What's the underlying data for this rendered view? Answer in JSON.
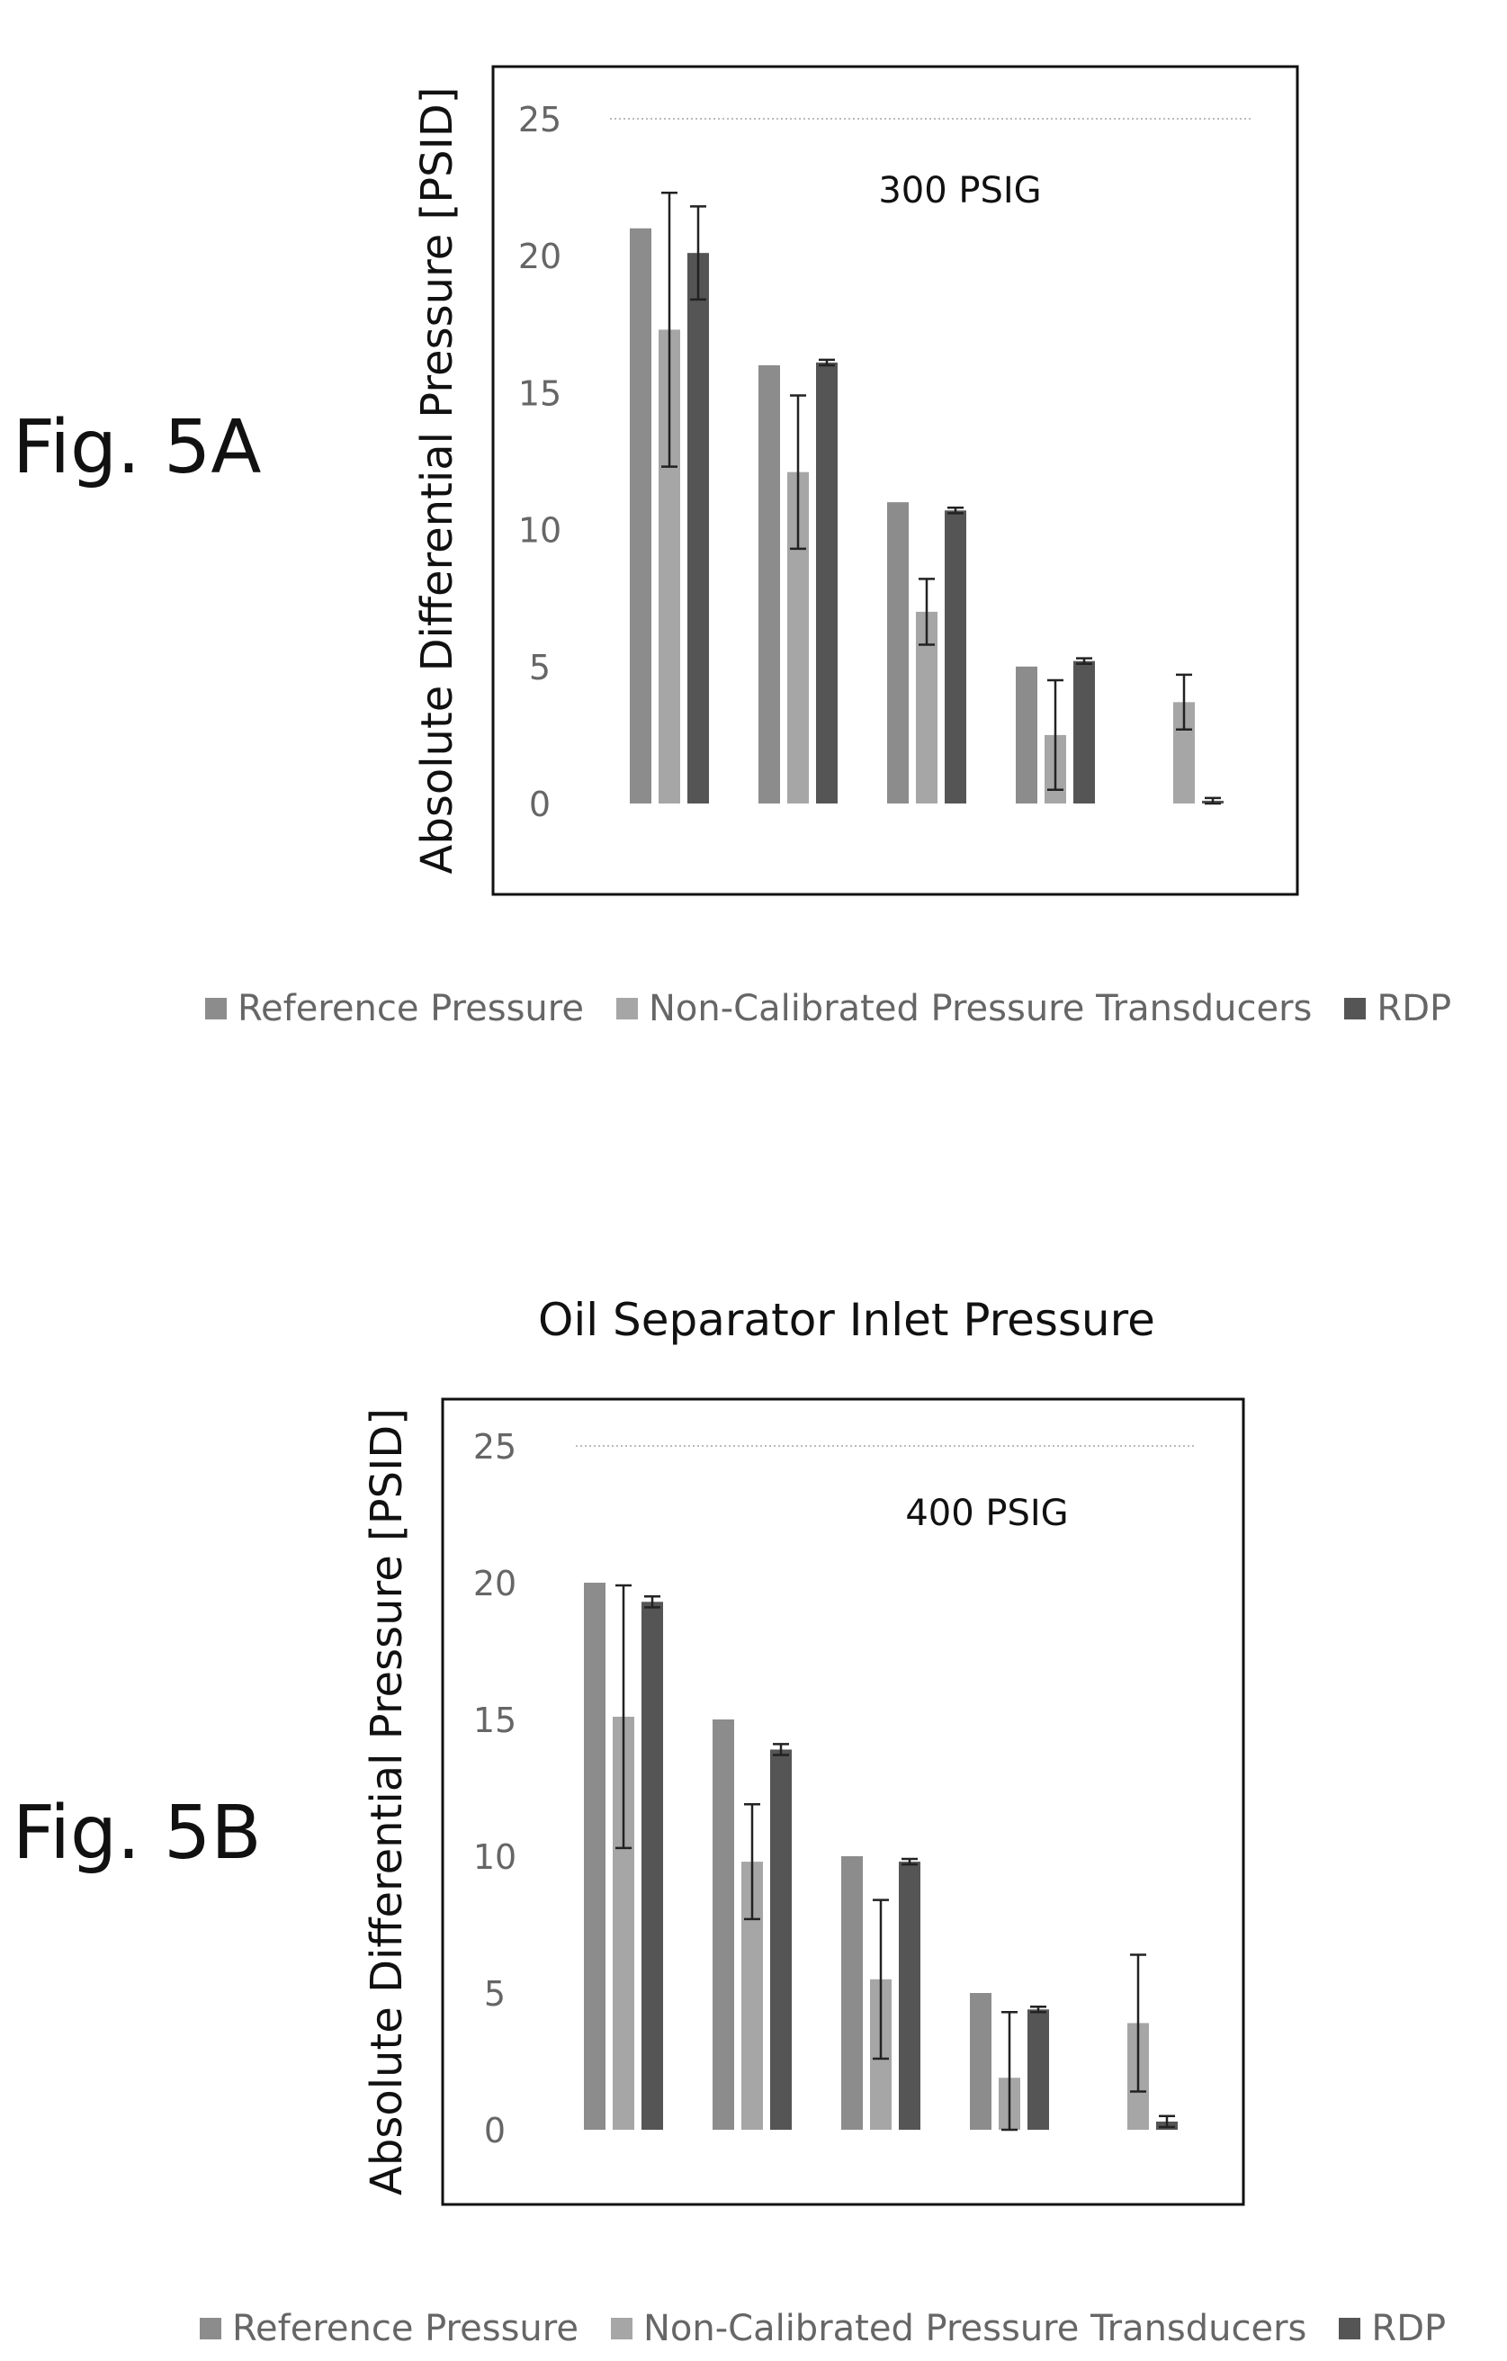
{
  "figures": {
    "a": {
      "label": "Fig. 5A"
    },
    "b": {
      "label": "Fig. 5B"
    }
  },
  "chart_data": [
    {
      "type": "bar",
      "title": "",
      "annotation": "300 PSIG",
      "xlabel": "",
      "ylabel": "Absolute Differential Pressure [PSID]",
      "ylim": [
        0,
        25
      ],
      "yticks": [
        0,
        5,
        10,
        15,
        20,
        25
      ],
      "grid": false,
      "legend_position": "bottom",
      "categories": [
        "",
        "",
        "",
        "",
        ""
      ],
      "series": [
        {
          "name": "Reference Pressure",
          "color": "#8c8c8c",
          "values": [
            21,
            16,
            11,
            5,
            0
          ],
          "error": [
            null,
            null,
            null,
            null,
            null
          ]
        },
        {
          "name": "Non-Calibrated Pressure Transducers",
          "color": "#a6a6a6",
          "values": [
            17.3,
            12.1,
            7.0,
            2.5,
            3.7
          ],
          "error": [
            5.0,
            2.8,
            1.2,
            2.0,
            1.0
          ]
        },
        {
          "name": "RDP",
          "color": "#555555",
          "values": [
            20.1,
            16.1,
            10.7,
            5.2,
            0.1
          ],
          "error": [
            1.7,
            0.1,
            0.1,
            0.1,
            0.1
          ]
        }
      ]
    },
    {
      "type": "bar",
      "title": "Oil Separator Inlet Pressure",
      "annotation": "400 PSIG",
      "xlabel": "",
      "ylabel": "Absolute Differential Pressure [PSID]",
      "ylim": [
        0,
        25
      ],
      "yticks": [
        0,
        5,
        10,
        15,
        20,
        25
      ],
      "grid": false,
      "legend_position": "bottom",
      "categories": [
        "",
        "",
        "",
        "",
        ""
      ],
      "series": [
        {
          "name": "Reference Pressure",
          "color": "#8c8c8c",
          "values": [
            20,
            15,
            10,
            5,
            0
          ],
          "error": [
            null,
            null,
            null,
            null,
            null
          ]
        },
        {
          "name": "Non-Calibrated Pressure Transducers",
          "color": "#a6a6a6",
          "values": [
            15.1,
            9.8,
            5.5,
            1.9,
            3.9
          ],
          "error": [
            4.8,
            2.1,
            2.9,
            2.4,
            2.5
          ]
        },
        {
          "name": "RDP",
          "color": "#555555",
          "values": [
            19.3,
            13.9,
            9.8,
            4.4,
            0.3
          ],
          "error": [
            0.2,
            0.2,
            0.1,
            0.1,
            0.2
          ]
        }
      ]
    }
  ]
}
